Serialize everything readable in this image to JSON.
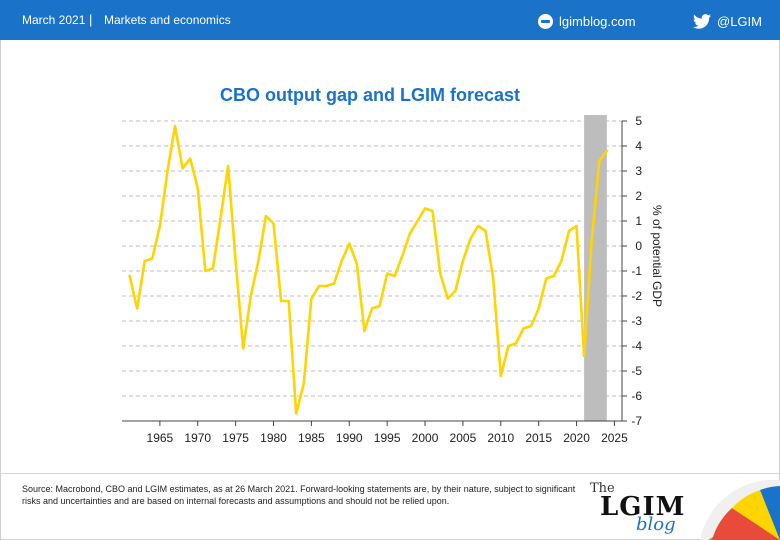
{
  "header": {
    "date": "March 2021",
    "separator": "|",
    "section": "Markets and economics",
    "blog_link": "lgimblog.com",
    "twitter_handle": "@LGIM",
    "bg_color": "#1a73c8"
  },
  "chart_data": {
    "type": "line",
    "title": "CBO output gap and LGIM forecast",
    "ylabel": "% of potential GDP",
    "xlabel": "",
    "x_ticks": [
      1965,
      1970,
      1975,
      1980,
      1985,
      1990,
      1995,
      2000,
      2005,
      2010,
      2015,
      2020,
      2025
    ],
    "y_ticks": [
      5,
      4,
      3,
      2,
      1,
      0,
      -1,
      -2,
      -3,
      -4,
      -5,
      -6,
      -7
    ],
    "xlim": [
      1960,
      2026
    ],
    "ylim": [
      -7,
      5
    ],
    "line_color": "#ffd400",
    "shaded_region": {
      "x_start": 2021,
      "x_end": 2024,
      "color": "#bdbdbd"
    },
    "grid": "horizontal dashed",
    "series": [
      {
        "x": [
          1961,
          1962,
          1963,
          1964,
          1965,
          1966,
          1967,
          1968,
          1969,
          1970,
          1971,
          1972,
          1973,
          1974,
          1975,
          1976,
          1977,
          1978,
          1979,
          1980,
          1981,
          1982,
          1983,
          1984,
          1985,
          1986,
          1987,
          1988,
          1989,
          1990,
          1991,
          1992,
          1993,
          1994,
          1995,
          1996,
          1997,
          1998,
          1999,
          2000,
          2001,
          2002,
          2003,
          2004,
          2005,
          2006,
          2007,
          2008,
          2009,
          2010,
          2011,
          2012,
          2013,
          2014,
          2015,
          2016,
          2017,
          2018,
          2019,
          2020,
          2021,
          2022,
          2023
        ],
        "y": [
          -1.2,
          -2.5,
          -0.6,
          -0.5,
          0.8,
          3.0,
          4.8,
          3.1,
          3.5,
          2.3,
          -1.0,
          -0.9,
          1.1,
          3.2,
          -0.6,
          -4.1,
          -2.0,
          -0.6,
          1.2,
          0.9,
          -2.2,
          -2.2,
          -6.7,
          -5.5,
          -2.1,
          -1.6,
          -1.6,
          -1.5,
          -0.6,
          0.1,
          -0.7,
          -3.4,
          -2.5,
          -2.4,
          -1.1,
          -1.2,
          -0.4,
          0.5,
          1.0,
          1.5,
          1.4,
          -1.1,
          -2.1,
          -1.8,
          -0.6,
          0.3,
          0.8,
          0.6,
          -1.3,
          -5.2,
          -4.0,
          -3.9,
          -3.3,
          -3.2,
          -2.5,
          -1.3,
          -1.2,
          -0.6,
          0.6,
          0.8,
          -4.4,
          0.2,
          3.4
        ]
      }
    ],
    "forecast_tail": {
      "x": [
        2023,
        2024
      ],
      "y": [
        3.4,
        3.8
      ]
    }
  },
  "footer": {
    "source": "Source: Macrobond, CBO and LGIM estimates, as at 26 March 2021. Forward-looking statements are, by their nature, subject to significant risks and uncertainties and are based on internal forecasts and assumptions and should not be relied upon.",
    "logo_the": "The",
    "logo_lgim": "LGIM",
    "logo_blog": "blog"
  }
}
